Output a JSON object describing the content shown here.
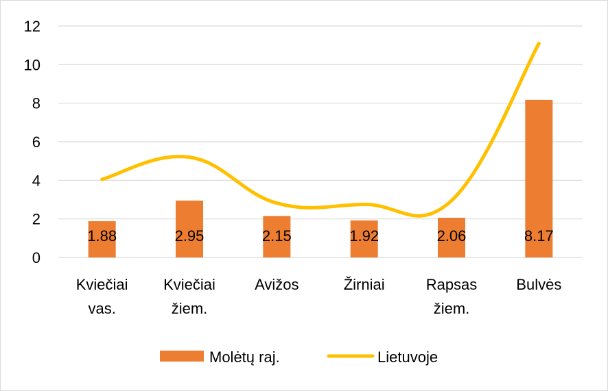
{
  "chart_data": {
    "type": "bar",
    "title": "",
    "xlabel": "",
    "ylabel": "",
    "ylim": [
      0,
      12
    ],
    "yticks": [
      0,
      2,
      4,
      6,
      8,
      10,
      12
    ],
    "grid": true,
    "legend_position": "bottom",
    "categories": [
      [
        "Kviečiai",
        "vas."
      ],
      [
        "Kviečiai",
        "žiem."
      ],
      [
        "Avižos"
      ],
      [
        "Žirniai"
      ],
      [
        "Rapsas",
        "žiem."
      ],
      [
        "Bulvės"
      ]
    ],
    "series": [
      {
        "name": "Molėtų raj.",
        "kind": "bar",
        "color": "#ED7D31",
        "values": [
          1.88,
          2.95,
          2.15,
          1.92,
          2.06,
          8.17
        ],
        "data_labels": [
          "1.88",
          "2.95",
          "2.15",
          "1.92",
          "2.06",
          "8.17"
        ]
      },
      {
        "name": "Lietuvoje",
        "kind": "line",
        "color": "#FFC000",
        "values": [
          4.05,
          5.2,
          2.82,
          2.75,
          2.95,
          11.1
        ]
      }
    ],
    "gridline_color": "#d9d9d9"
  }
}
